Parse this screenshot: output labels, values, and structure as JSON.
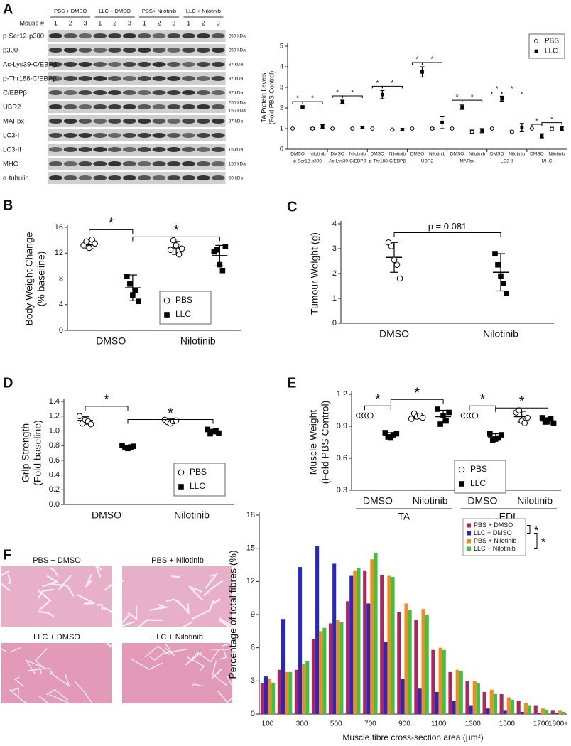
{
  "panel_labels": [
    "A",
    "B",
    "C",
    "D",
    "E",
    "F"
  ],
  "blot": {
    "groups": [
      "PBS + DMSO",
      "LLC + DMSO",
      "PBS+ Nilotinib",
      "LLC + Nilotinib"
    ],
    "mouse_label": "Mouse #",
    "mice": [
      "1",
      "2",
      "3"
    ],
    "rows": [
      {
        "label": "p-Ser12-p300",
        "kda": [
          "250 kDa"
        ]
      },
      {
        "label": "p300",
        "kda": [
          "250 kDa"
        ]
      },
      {
        "label": "Ac-Lys39-C/EBPβ",
        "kda": [
          "37 kDa"
        ]
      },
      {
        "label": "p-Thr188-C/EBPβ",
        "kda": [
          "37 kDa"
        ]
      },
      {
        "label": "C/EBPβ",
        "kda": [
          "37 kDa"
        ]
      },
      {
        "label": "UBR2",
        "kda": [
          "250 kDa",
          "150 kDa"
        ]
      },
      {
        "label": "MAFbx",
        "kda": [
          "37 kDa"
        ]
      },
      {
        "label": "LC3-I",
        "kda": []
      },
      {
        "label": "LC3-II",
        "kda": [
          "15 kDa"
        ]
      },
      {
        "label": "MHC",
        "kda": [
          "150 kDa"
        ]
      },
      {
        "label": "α-tubulin",
        "kda": [
          "50 kDa"
        ]
      }
    ]
  },
  "images": [
    "PBS + DMSO",
    "PBS + Nilotinib",
    "LLC + DMSO",
    "LLC + Nilotinib"
  ],
  "chart_data": [
    {
      "type": "dot",
      "ylabel": [
        "TA Protein Levels",
        "(Fold PBS Control)"
      ],
      "ylim": [
        0,
        5
      ],
      "yticks": [
        0,
        1,
        2,
        3,
        4,
        5
      ],
      "categories": [
        "DMSO",
        "Nilotinib",
        "DMSO",
        "Nilotinib",
        "DMSO",
        "Nilotinib",
        "DMSO",
        "Nilotinib",
        "DMSO",
        "Nilotinib",
        "DMSO",
        "Nilotinib",
        "DMSO",
        "Nilotinib"
      ],
      "groups": [
        "p-Ser12-p300",
        "Ac-Lys39-C/EBPβ",
        "p-Thr188-C/EBPβ",
        "UBR2",
        "MAFbx",
        "LC3-II",
        "MHC"
      ],
      "series": [
        {
          "name": "PBS",
          "marker": "circle",
          "means": [
            1,
            1,
            1,
            1,
            1,
            0.95,
            1,
            1,
            1,
            0.85,
            1,
            0.85,
            1,
            0.98
          ],
          "sd": [
            0,
            0.05,
            0,
            0.03,
            0,
            0.03,
            0,
            0.05,
            0,
            0.08,
            0,
            0.05,
            0,
            0.08
          ]
        },
        {
          "name": "LLC",
          "marker": "square",
          "means": [
            2.05,
            1.1,
            2.3,
            1.05,
            2.65,
            0.95,
            3.75,
            1.3,
            2.05,
            0.9,
            2.45,
            1.05,
            0.65,
            1.0
          ],
          "sd": [
            0.05,
            0.1,
            0.08,
            0.05,
            0.2,
            0.05,
            0.25,
            0.3,
            0.12,
            0.1,
            0.12,
            0.2,
            0.1,
            0.08
          ]
        }
      ],
      "legend": "top-right",
      "comparisons": [
        {
          "label": "*",
          "between": [
            [
              0,
              0
            ],
            [
              1,
              0
            ]
          ]
        },
        {
          "label": "*",
          "between": [
            [
              1,
              0
            ],
            [
              1,
              1
            ]
          ]
        },
        {
          "label": "*",
          "between": [
            [
              0,
              2
            ],
            [
              1,
              2
            ]
          ]
        },
        {
          "label": "*",
          "between": [
            [
              1,
              2
            ],
            [
              1,
              3
            ]
          ]
        },
        {
          "label": "*",
          "between": [
            [
              0,
              4
            ],
            [
              1,
              4
            ]
          ]
        },
        {
          "label": "*",
          "between": [
            [
              1,
              4
            ],
            [
              1,
              5
            ]
          ]
        },
        {
          "label": "*",
          "between": [
            [
              0,
              6
            ],
            [
              1,
              6
            ]
          ]
        },
        {
          "label": "*",
          "between": [
            [
              1,
              6
            ],
            [
              1,
              7
            ]
          ]
        },
        {
          "label": "*",
          "between": [
            [
              0,
              8
            ],
            [
              1,
              8
            ]
          ]
        },
        {
          "label": "*",
          "between": [
            [
              1,
              8
            ],
            [
              1,
              9
            ]
          ]
        },
        {
          "label": "*",
          "between": [
            [
              0,
              10
            ],
            [
              1,
              10
            ]
          ]
        },
        {
          "label": "*",
          "between": [
            [
              1,
              10
            ],
            [
              1,
              11
            ]
          ]
        },
        {
          "label": "*",
          "between": [
            [
              0,
              12
            ],
            [
              1,
              12
            ]
          ]
        },
        {
          "label": "*",
          "between": [
            [
              1,
              12
            ],
            [
              1,
              13
            ]
          ]
        }
      ]
    },
    {
      "type": "dot",
      "ylabel": [
        "Body Weight Change",
        "(% baseline)"
      ],
      "ylim": [
        0,
        16
      ],
      "yticks": [
        0,
        4,
        8,
        12,
        16
      ],
      "categories": [
        "DMSO",
        "Nilotinib"
      ],
      "series": [
        {
          "name": "PBS",
          "marker": "circle",
          "points": [
            [
              13.2,
              13.8,
              12.8,
              14.1,
              13.5
            ],
            [
              12.5,
              14.0,
              13.2,
              11.8,
              12.7
            ]
          ],
          "means": [
            13.3,
            12.8
          ],
          "sd": [
            0.6,
            1.0
          ]
        },
        {
          "name": "LLC",
          "marker": "square",
          "points": [
            [
              8.4,
              7.2,
              5.5,
              6.2,
              4.5
            ],
            [
              12.2,
              12.5,
              10.2,
              9.3,
              13.0
            ]
          ],
          "means": [
            6.6,
            11.6
          ],
          "sd": [
            2.0,
            1.6
          ]
        }
      ],
      "legend": "bottom-right",
      "comparisons": [
        {
          "label": "*",
          "between": [
            [
              0,
              0
            ],
            [
              1,
              0
            ]
          ]
        },
        {
          "label": "*",
          "between": [
            [
              1,
              0
            ],
            [
              1,
              1
            ]
          ]
        }
      ]
    },
    {
      "type": "dot",
      "ylabel": [
        "Tumour Weight (g)"
      ],
      "ylim": [
        0,
        4
      ],
      "yticks": [
        0,
        1,
        2,
        3,
        4
      ],
      "categories": [
        "DMSO",
        "Nilotinib"
      ],
      "series": [
        {
          "marker": [
            "circle",
            "square"
          ],
          "points": [
            [
              3.25,
              3.1,
              2.55,
              2.35,
              1.8
            ],
            [
              2.8,
              2.35,
              1.9,
              1.6,
              1.2
            ]
          ],
          "means": [
            2.65,
            2.05
          ],
          "sd": [
            0.6,
            0.75
          ]
        }
      ],
      "comparisons": [
        {
          "label": "p = 0.081",
          "between": [
            [
              0,
              0
            ],
            [
              0,
              1
            ]
          ]
        }
      ]
    },
    {
      "type": "dot",
      "ylabel": [
        "Grip Strength",
        "(Fold baseline)"
      ],
      "ylim": [
        0,
        1.4
      ],
      "yticks": [
        {
          "value": 0,
          "label": "0.0"
        },
        0.2,
        0.4,
        0.6,
        0.8,
        {
          "value": 1,
          "label": "1.0"
        },
        1.2,
        1.4
      ],
      "categories": [
        "DMSO",
        "Nilotinib"
      ],
      "series": [
        {
          "name": "PBS",
          "marker": "circle",
          "points": [
            [
              1.2,
              1.1,
              1.15,
              1.13,
              1.09
            ],
            [
              1.15,
              1.12,
              1.1,
              1.13,
              1.14
            ]
          ],
          "means": [
            1.14,
            1.13
          ],
          "sd": [
            0.05,
            0.03
          ]
        },
        {
          "name": "LLC",
          "marker": "square",
          "points": [
            [
              0.8,
              0.77,
              0.76,
              0.78,
              0.79
            ],
            [
              1.02,
              0.96,
              0.99,
              1.0,
              0.97
            ]
          ],
          "means": [
            0.78,
            0.99
          ],
          "sd": [
            0.02,
            0.03
          ]
        }
      ],
      "legend": "bottom-right",
      "comparisons": [
        {
          "label": "*",
          "between": [
            [
              0,
              0
            ],
            [
              1,
              0
            ]
          ]
        },
        {
          "label": "*",
          "between": [
            [
              1,
              0
            ],
            [
              1,
              1
            ]
          ]
        }
      ]
    },
    {
      "type": "dot",
      "ylabel": [
        "Muscle Weight",
        "(Fold PBS Control)"
      ],
      "ylim": [
        0.3,
        1.2
      ],
      "yticks": [
        0.3,
        0.6,
        0.9,
        1.2
      ],
      "categories": [
        "DMSO",
        "Nilotinib",
        "DMSO",
        "Nilotinib"
      ],
      "groups": [
        "TA",
        "EDL"
      ],
      "series": [
        {
          "name": "PBS",
          "marker": "circle",
          "points": [
            [
              1.0,
              1.0,
              1.0,
              1.0,
              1.0
            ],
            [
              0.97,
              1.02,
              0.99,
              1.0,
              0.98
            ],
            [
              1.0,
              1.0,
              1.0,
              1.0,
              1.0
            ],
            [
              1.03,
              1.05,
              0.95,
              0.93,
              0.98
            ]
          ],
          "means": [
            1.0,
            0.99,
            1.0,
            0.99
          ],
          "sd": [
            0.005,
            0.02,
            0.005,
            0.05
          ]
        },
        {
          "name": "LLC",
          "marker": "square",
          "points": [
            [
              0.84,
              0.8,
              0.79,
              0.82,
              0.83
            ],
            [
              1.06,
              0.92,
              1.0,
              0.95,
              1.03
            ],
            [
              0.83,
              0.77,
              0.78,
              0.79,
              0.82
            ],
            [
              0.98,
              0.94,
              0.95,
              0.97,
              0.93
            ]
          ],
          "means": [
            0.82,
            0.99,
            0.8,
            0.95
          ],
          "sd": [
            0.02,
            0.06,
            0.03,
            0.03
          ]
        }
      ],
      "legend": "bottom-right",
      "comparisons": [
        {
          "label": "*",
          "between": [
            [
              0,
              0
            ],
            [
              1,
              0
            ]
          ]
        },
        {
          "label": "*",
          "between": [
            [
              1,
              0
            ],
            [
              1,
              1
            ]
          ]
        },
        {
          "label": "*",
          "between": [
            [
              0,
              2
            ],
            [
              1,
              2
            ]
          ]
        },
        {
          "label": "*",
          "between": [
            [
              1,
              2
            ],
            [
              1,
              3
            ]
          ]
        }
      ]
    },
    {
      "type": "bar",
      "ylabel": "Percentage of total fibres (%)",
      "xlabel": "Muscle fibre cross-section area (μm²)",
      "ylim": [
        0,
        18
      ],
      "yticks": [
        0,
        3,
        6,
        9,
        12,
        15,
        18
      ],
      "categories": [
        "100",
        null,
        "300",
        null,
        "500",
        null,
        "700",
        null,
        "900",
        null,
        "1100",
        null,
        "1300",
        null,
        "1500",
        null,
        "1700",
        "1800+"
      ],
      "series": [
        {
          "name": "PBS + DMSO",
          "color": "#b0245e",
          "values": [
            2.8,
            4.0,
            4.0,
            6.8,
            8.2,
            10.2,
            13.0,
            12.6,
            9.2,
            8.5,
            5.8,
            3.8,
            3.0,
            2.0,
            1.8,
            1.2,
            0.8,
            0.3
          ]
        },
        {
          "name": "LLC + DMSO",
          "color": "#2626c9",
          "values": [
            3.4,
            8.6,
            13.3,
            15.2,
            13.6,
            12.5,
            10.0,
            6.5,
            3.2,
            2.3,
            2.0,
            1.2,
            0.8,
            0.5,
            0.3,
            0.2,
            0.1,
            0.1
          ]
        },
        {
          "name": "PBS + Nilotinib",
          "color": "#f28a1e",
          "values": [
            3.2,
            3.8,
            4.5,
            7.5,
            8.5,
            13.0,
            14.0,
            12.5,
            10.0,
            9.5,
            6.0,
            4.0,
            3.0,
            2.2,
            1.5,
            1.0,
            0.5,
            0.3
          ]
        },
        {
          "name": "LLC + Nilotinib",
          "color": "#3cc43c",
          "values": [
            2.8,
            3.8,
            4.8,
            7.8,
            8.3,
            13.2,
            14.6,
            12.4,
            9.4,
            9.0,
            5.8,
            3.9,
            2.8,
            1.8,
            1.3,
            0.8,
            0.4,
            0.2
          ]
        }
      ],
      "legend": "top-right",
      "comparisons": [
        {
          "label": "*",
          "between": [
            0,
            1
          ]
        },
        {
          "label": "*",
          "between": [
            1,
            3
          ]
        }
      ]
    }
  ]
}
